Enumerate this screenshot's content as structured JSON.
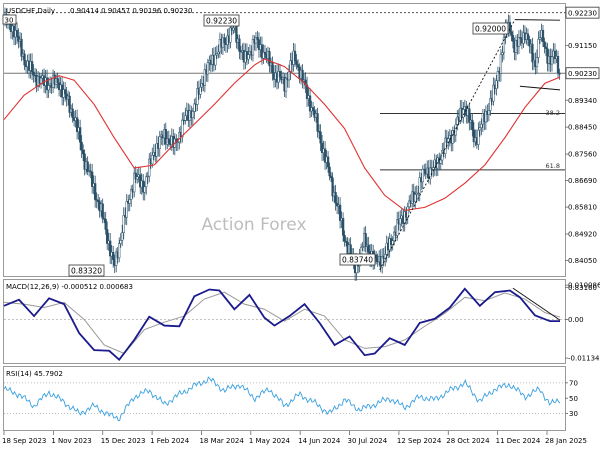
{
  "chart_data": [
    {
      "panel": "price",
      "type": "candlestick",
      "title": "USDCHF,Daily",
      "ohlc": {
        "open": 0.90414,
        "high": 0.90457,
        "low": 0.90196,
        "close": 0.9023
      },
      "watermark": "Action Forex",
      "ylim": [
        0.836,
        0.9245
      ],
      "y_ticks": [
        "0.92230",
        "0.91150",
        "0.90230",
        "0.89340",
        "0.88450",
        "0.87560",
        "0.86690",
        "0.85810",
        "0.84920",
        "0.84050",
        "0.83160"
      ],
      "current_price": "0.90230",
      "marked_levels": [
        {
          "text": "0.92230",
          "value": 0.9223
        },
        {
          "text": "0.83320",
          "value": 0.8332
        },
        {
          "text": "0.83740",
          "value": 0.8374
        },
        {
          "text": "0.92000",
          "value": 0.92
        }
      ],
      "fib_levels": [
        {
          "label": "38.2",
          "value": 0.889
        },
        {
          "label": "61.8",
          "value": 0.8704
        }
      ],
      "corner_tag": "30",
      "close_series": {
        "x": [
          0,
          10,
          20,
          30,
          40,
          55,
          70,
          80,
          90,
          100,
          110,
          120,
          130,
          140,
          150,
          160,
          170,
          180,
          190,
          200,
          210,
          220,
          230,
          240,
          250,
          260,
          270,
          280,
          290,
          300,
          310,
          320,
          330,
          340,
          350,
          360,
          370,
          380,
          390,
          400,
          410,
          420,
          430,
          440,
          450,
          460,
          470,
          480,
          490,
          500,
          505,
          510,
          520,
          530,
          535,
          540,
          545,
          550,
          555
        ],
        "y": [
          0.9195,
          0.917,
          0.907,
          0.9015,
          0.899,
          0.899,
          0.888,
          0.874,
          0.864,
          0.853,
          0.838,
          0.854,
          0.868,
          0.865,
          0.877,
          0.882,
          0.878,
          0.887,
          0.891,
          0.902,
          0.908,
          0.913,
          0.917,
          0.906,
          0.913,
          0.909,
          0.902,
          0.899,
          0.908,
          0.898,
          0.888,
          0.875,
          0.862,
          0.848,
          0.838,
          0.847,
          0.84,
          0.842,
          0.85,
          0.856,
          0.862,
          0.87,
          0.871,
          0.878,
          0.884,
          0.892,
          0.88,
          0.888,
          0.897,
          0.915,
          0.918,
          0.91,
          0.916,
          0.905,
          0.915,
          0.911,
          0.906,
          0.908,
          0.9023
        ]
      },
      "ma_series": {
        "x": [
          0,
          10,
          20,
          40,
          55,
          70,
          90,
          110,
          130,
          150,
          170,
          190,
          210,
          230,
          250,
          260,
          280,
          300,
          320,
          340,
          360,
          380,
          400,
          420,
          440,
          460,
          480,
          500,
          520,
          540,
          555
        ],
        "y": [
          0.887,
          0.891,
          0.895,
          0.8995,
          0.9015,
          0.9,
          0.892,
          0.881,
          0.871,
          0.872,
          0.879,
          0.8855,
          0.892,
          0.899,
          0.905,
          0.907,
          0.9045,
          0.899,
          0.892,
          0.884,
          0.871,
          0.862,
          0.857,
          0.858,
          0.861,
          0.866,
          0.872,
          0.881,
          0.891,
          0.899,
          0.901
        ]
      },
      "trendlines": [
        {
          "style": "dashed",
          "from": [
            375,
            0.8374
          ],
          "to": [
            510,
            0.92
          ]
        },
        {
          "style": "solid",
          "from": [
            510,
            0.92
          ],
          "to": [
            555,
            0.9198
          ]
        },
        {
          "style": "solid",
          "from": [
            515,
            0.898
          ],
          "to": [
            555,
            0.8968
          ]
        }
      ]
    },
    {
      "panel": "macd",
      "type": "line",
      "title": "MACD(12,26,9) -0.000512 0.000683",
      "ylim": [
        -0.0122,
        0.011
      ],
      "y_ticks": [
        "0.010086",
        "0.00",
        "-0.011342"
      ],
      "series": [
        {
          "line": "macd",
          "x": [
            0,
            15,
            30,
            45,
            60,
            75,
            90,
            105,
            115,
            130,
            145,
            160,
            175,
            190,
            205,
            215,
            230,
            245,
            260,
            270,
            285,
            300,
            315,
            330,
            345,
            360,
            370,
            385,
            400,
            415,
            430,
            445,
            460,
            475,
            490,
            505,
            515,
            530,
            545,
            555
          ],
          "y": [
            0.004,
            0.0058,
            0.001,
            0.0062,
            0.0045,
            -0.004,
            -0.009,
            -0.0092,
            -0.0118,
            -0.006,
            0.0008,
            -0.0018,
            -0.002,
            0.0068,
            0.0088,
            0.0085,
            0.003,
            0.0072,
            0.0005,
            -0.0018,
            0.001,
            0.0045,
            -0.001,
            -0.0075,
            -0.005,
            -0.0105,
            -0.01,
            -0.0055,
            -0.0075,
            -0.001,
            0.0002,
            0.0035,
            0.009,
            0.004,
            0.008,
            0.0085,
            0.0065,
            0.0012,
            -0.0005,
            -0.0005
          ]
        },
        {
          "line": "signal",
          "x": [
            0,
            20,
            40,
            60,
            80,
            100,
            120,
            140,
            160,
            180,
            200,
            220,
            240,
            260,
            280,
            300,
            320,
            340,
            360,
            380,
            400,
            420,
            440,
            460,
            480,
            500,
            520,
            540,
            555
          ],
          "y": [
            0.005,
            0.0045,
            0.0035,
            0.005,
            0.0,
            -0.0075,
            -0.01,
            -0.003,
            -0.0008,
            0.001,
            0.006,
            0.008,
            0.0045,
            0.003,
            -0.0005,
            0.003,
            0.001,
            -0.006,
            -0.0085,
            -0.008,
            -0.006,
            -0.002,
            0.0018,
            0.0065,
            0.0055,
            0.0078,
            0.006,
            0.002,
            0.0007
          ]
        }
      ],
      "trendline": {
        "style": "solid",
        "from": [
          508,
          0.0092
        ],
        "to": [
          555,
          -0.0002
        ]
      }
    },
    {
      "panel": "rsi",
      "type": "line",
      "title": "RSI(14) 45.7902",
      "ylim": [
        10,
        88
      ],
      "y_ticks": [
        "70",
        "50",
        "30"
      ],
      "dotted_levels": [
        70,
        30
      ],
      "series": [
        {
          "x": [
            0,
            15,
            30,
            45,
            60,
            75,
            90,
            105,
            115,
            130,
            145,
            160,
            175,
            190,
            205,
            220,
            235,
            250,
            265,
            280,
            295,
            310,
            325,
            340,
            355,
            370,
            385,
            400,
            415,
            430,
            445,
            460,
            475,
            490,
            505,
            520,
            535,
            545,
            555
          ],
          "y": [
            62,
            55,
            40,
            58,
            45,
            30,
            40,
            28,
            24,
            52,
            60,
            42,
            55,
            66,
            75,
            60,
            68,
            50,
            62,
            40,
            55,
            44,
            30,
            48,
            35,
            42,
            50,
            38,
            52,
            48,
            60,
            70,
            46,
            62,
            68,
            52,
            62,
            42,
            48
          ]
        }
      ]
    },
    {
      "panel": "x_axis",
      "type": "axis",
      "x_ticks": [
        "18 Sep 2023",
        "1 Nov 2023",
        "15 Dec 2023",
        "1 Feb 2024",
        "18 Mar 2024",
        "1 May 2024",
        "14 Jun 2024",
        "30 Jul 2024",
        "12 Sep 2024",
        "28 Oct 2024",
        "11 Dec 2024",
        "28 Jan 2025"
      ]
    }
  ]
}
